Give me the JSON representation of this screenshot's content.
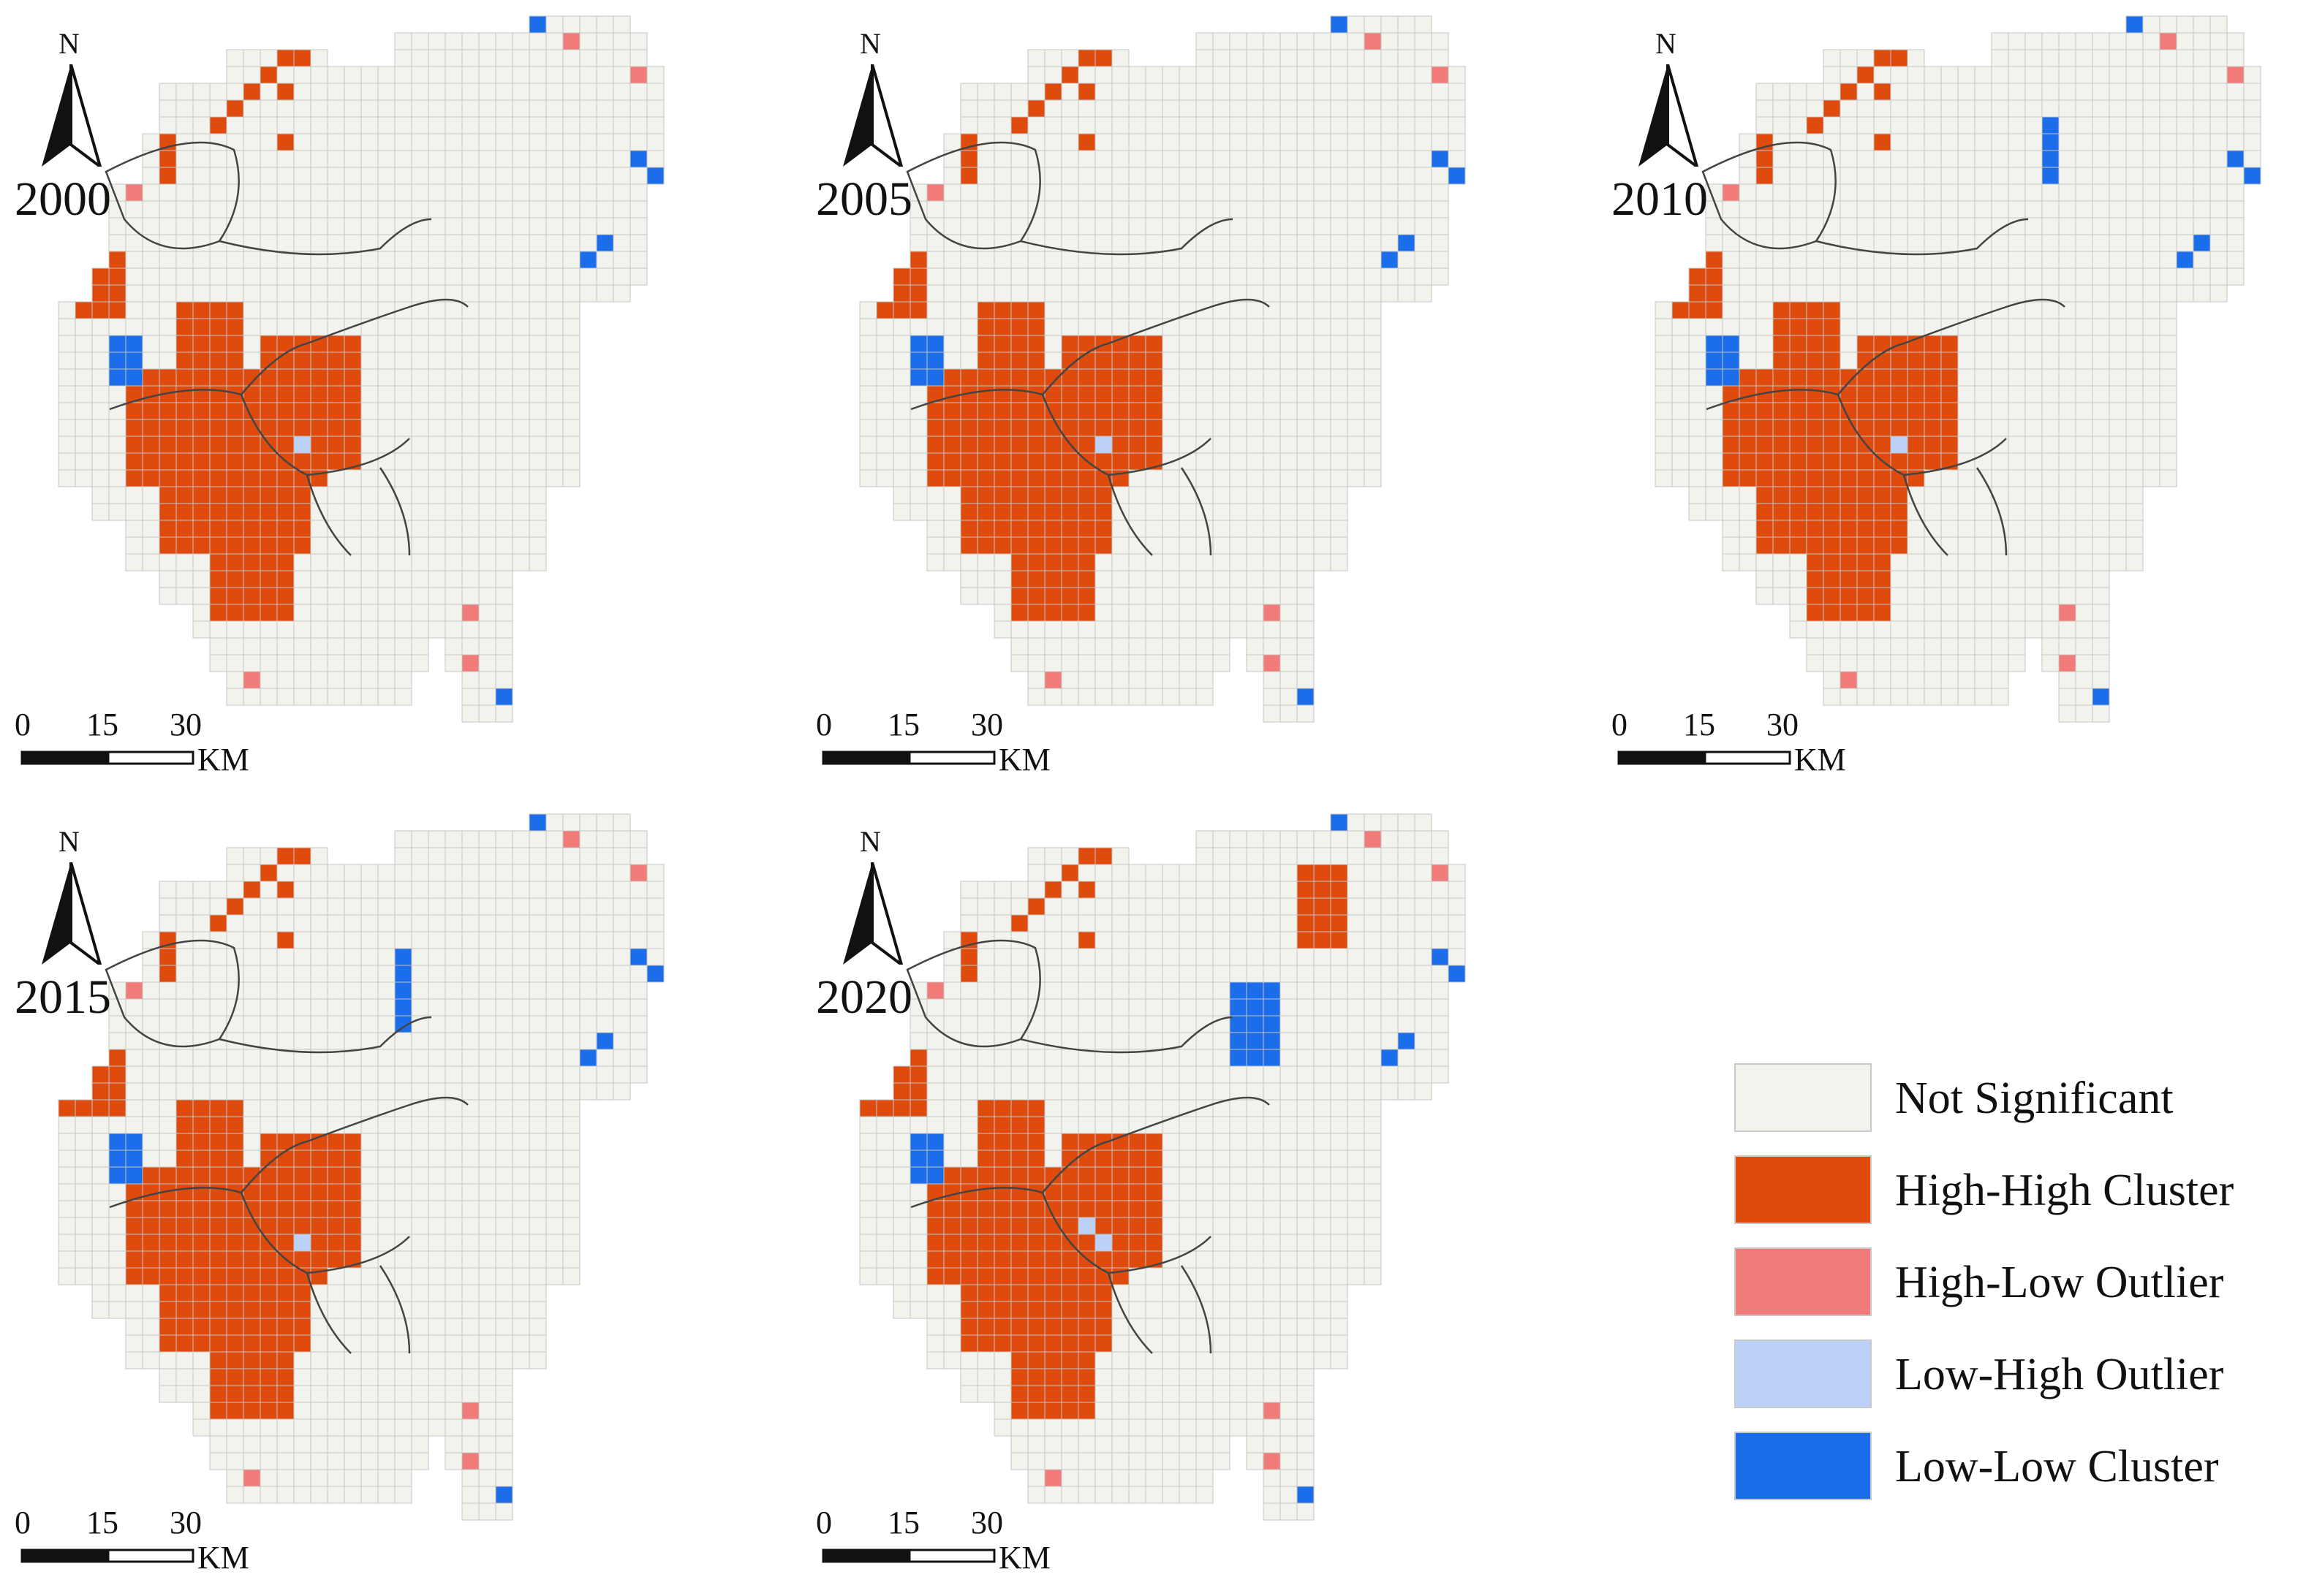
{
  "north_label": "N",
  "scale": {
    "ticks": [
      "0",
      "15",
      "30"
    ],
    "unit": "KM"
  },
  "legend": {
    "items": [
      {
        "label": "Not Significant",
        "color": "#f3f3ee"
      },
      {
        "label": "High-High Cluster",
        "color": "#df4b0c"
      },
      {
        "label": "High-Low Outlier",
        "color": "#f17b78"
      },
      {
        "label": "Low-High Outlier",
        "color": "#bcd1f7"
      },
      {
        "label": "Low-Low Cluster",
        "color": "#1c6de9"
      }
    ]
  },
  "panels": [
    {
      "year": "2000"
    },
    {
      "year": "2005"
    },
    {
      "year": "2010"
    },
    {
      "year": "2015"
    },
    {
      "year": "2020"
    }
  ]
}
